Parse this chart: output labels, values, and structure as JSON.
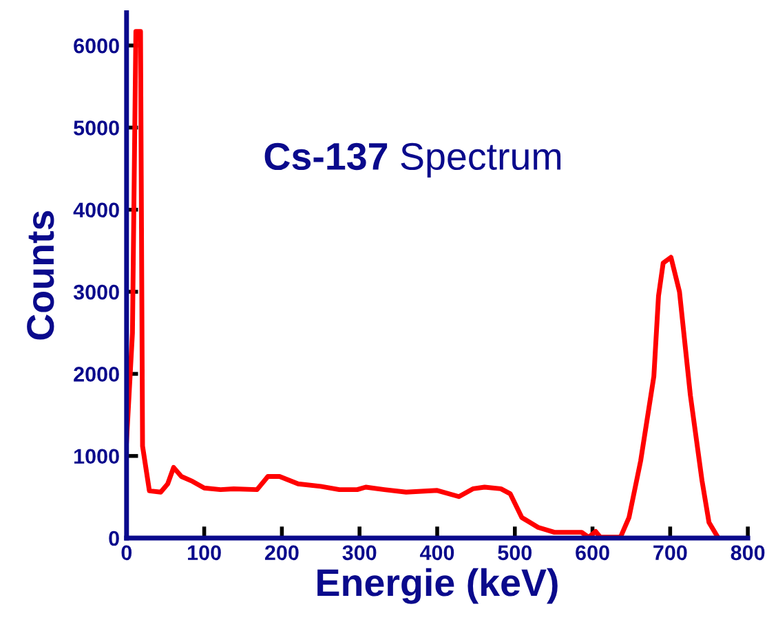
{
  "chart_data": {
    "type": "line",
    "title": "Cs-137 Spectrum",
    "xlabel": "Energie (keV)",
    "ylabel": "Counts",
    "xlim": [
      0,
      800
    ],
    "ylim": [
      0,
      6400
    ],
    "xticks": [
      0,
      100,
      200,
      300,
      400,
      500,
      600,
      700,
      800
    ],
    "yticks": [
      0,
      1000,
      2000,
      3000,
      4000,
      5000,
      6000
    ],
    "grid": false,
    "marker": "none",
    "line_style": "solid",
    "series": [
      {
        "color": "#ff0000",
        "x": [
          0,
          7.6,
          12,
          18,
          20.6,
          29.4,
          44,
          53,
          60.6,
          70.6,
          85,
          100,
          121,
          138,
          168,
          182,
          197,
          221,
          250,
          274,
          297,
          308,
          332,
          360,
          400,
          428,
          446,
          461,
          482,
          494,
          509,
          530,
          551,
          586,
          595,
          604,
          610,
          636,
          647,
          662,
          679,
          685,
          691,
          701,
          712,
          726,
          741,
          750,
          762
        ],
        "values": [
          1180,
          2500,
          6170,
          6170,
          1120,
          575,
          560,
          660,
          860,
          750,
          690,
          610,
          590,
          600,
          590,
          750,
          750,
          660,
          630,
          590,
          590,
          620,
          590,
          560,
          580,
          505,
          600,
          620,
          600,
          540,
          250,
          130,
          70,
          70,
          10,
          80,
          10,
          10,
          250,
          940,
          1970,
          2950,
          3350,
          3420,
          3000,
          1740,
          700,
          190,
          0
        ]
      }
    ]
  }
}
